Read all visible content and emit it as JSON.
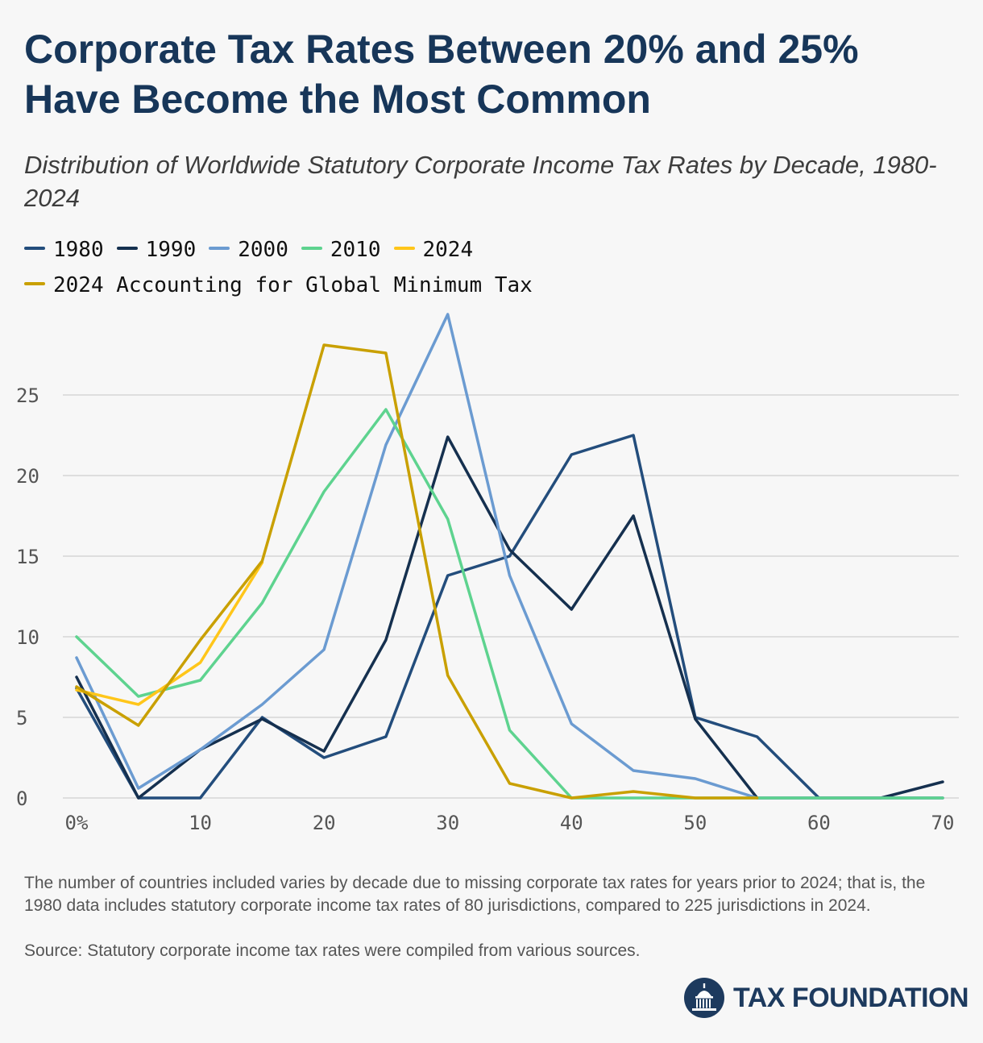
{
  "header": {
    "title": "Corporate Tax Rates Between 20% and 25% Have Become the Most Common",
    "subtitle": "Distribution of Worldwide Statutory Corporate Income Tax Rates by Decade, 1980-2024"
  },
  "chart_data": {
    "type": "line",
    "title": "Corporate Tax Rates Between 20% and 25% Have Become the Most Common",
    "subtitle": "Distribution of Worldwide Statutory Corporate Income Tax Rates by Decade, 1980-2024",
    "xlabel": "",
    "ylabel": "",
    "x": [
      0,
      5,
      10,
      15,
      20,
      25,
      30,
      35,
      40,
      45,
      50,
      55,
      60,
      65,
      70
    ],
    "xlim": [
      0,
      70
    ],
    "ylim": [
      0,
      30
    ],
    "x_ticks": [
      {
        "value": 0,
        "label": "0%"
      },
      {
        "value": 10,
        "label": "10"
      },
      {
        "value": 20,
        "label": "20"
      },
      {
        "value": 30,
        "label": "30"
      },
      {
        "value": 40,
        "label": "40"
      },
      {
        "value": 50,
        "label": "50"
      },
      {
        "value": 60,
        "label": "60"
      },
      {
        "value": 70,
        "label": "70"
      }
    ],
    "y_ticks": [
      {
        "value": 0,
        "label": "0"
      },
      {
        "value": 5,
        "label": "5"
      },
      {
        "value": 10,
        "label": "10"
      },
      {
        "value": 15,
        "label": "15"
      },
      {
        "value": 20,
        "label": "20"
      },
      {
        "value": 25,
        "label": "25"
      }
    ],
    "grid": "horizontal",
    "legend_position": "top",
    "series": [
      {
        "name": "1980",
        "color": "#234d7c",
        "values": [
          6.8,
          0,
          0,
          5.0,
          2.5,
          3.8,
          13.8,
          15.0,
          21.3,
          22.5,
          5.0,
          3.8,
          0,
          0,
          0
        ]
      },
      {
        "name": "1990",
        "color": "#15304f",
        "values": [
          7.5,
          0,
          3.0,
          4.9,
          2.9,
          9.8,
          22.4,
          15.4,
          11.7,
          17.5,
          4.9,
          0,
          0,
          0,
          1.0
        ]
      },
      {
        "name": "2000",
        "color": "#6b9bd1",
        "values": [
          8.7,
          0.6,
          3.0,
          5.8,
          9.2,
          21.9,
          30.0,
          13.8,
          4.6,
          1.7,
          1.2,
          0,
          0,
          0,
          0
        ]
      },
      {
        "name": "2010",
        "color": "#5ed38f",
        "values": [
          10.0,
          6.3,
          7.3,
          12.1,
          19.0,
          24.1,
          17.3,
          4.2,
          0,
          0,
          0,
          0,
          0,
          0,
          0
        ]
      },
      {
        "name": "2024",
        "color": "#ffc61a",
        "values": [
          6.7,
          5.8,
          8.4,
          14.6,
          null,
          null,
          null,
          null,
          null,
          null,
          null,
          null,
          null,
          null,
          null
        ]
      },
      {
        "name": "2024 Accounting for Global Minimum Tax",
        "color": "#c9a000",
        "values": [
          6.9,
          4.5,
          9.8,
          14.7,
          28.1,
          27.6,
          7.6,
          0.9,
          0,
          0.4,
          0,
          0,
          null,
          null,
          null
        ]
      }
    ]
  },
  "footnote": "The number of countries included varies by decade due to missing corporate tax rates for years prior to 2024; that is, the 1980 data includes statutory corporate income tax rates of 80 jurisdictions, compared to 225 jurisdictions in 2024.",
  "source": "Source: Statutory corporate income tax rates were compiled from various sources.",
  "logo": {
    "text": "TAX FOUNDATION",
    "icon": "capitol-dome-icon",
    "color": "#1d3a5e"
  }
}
